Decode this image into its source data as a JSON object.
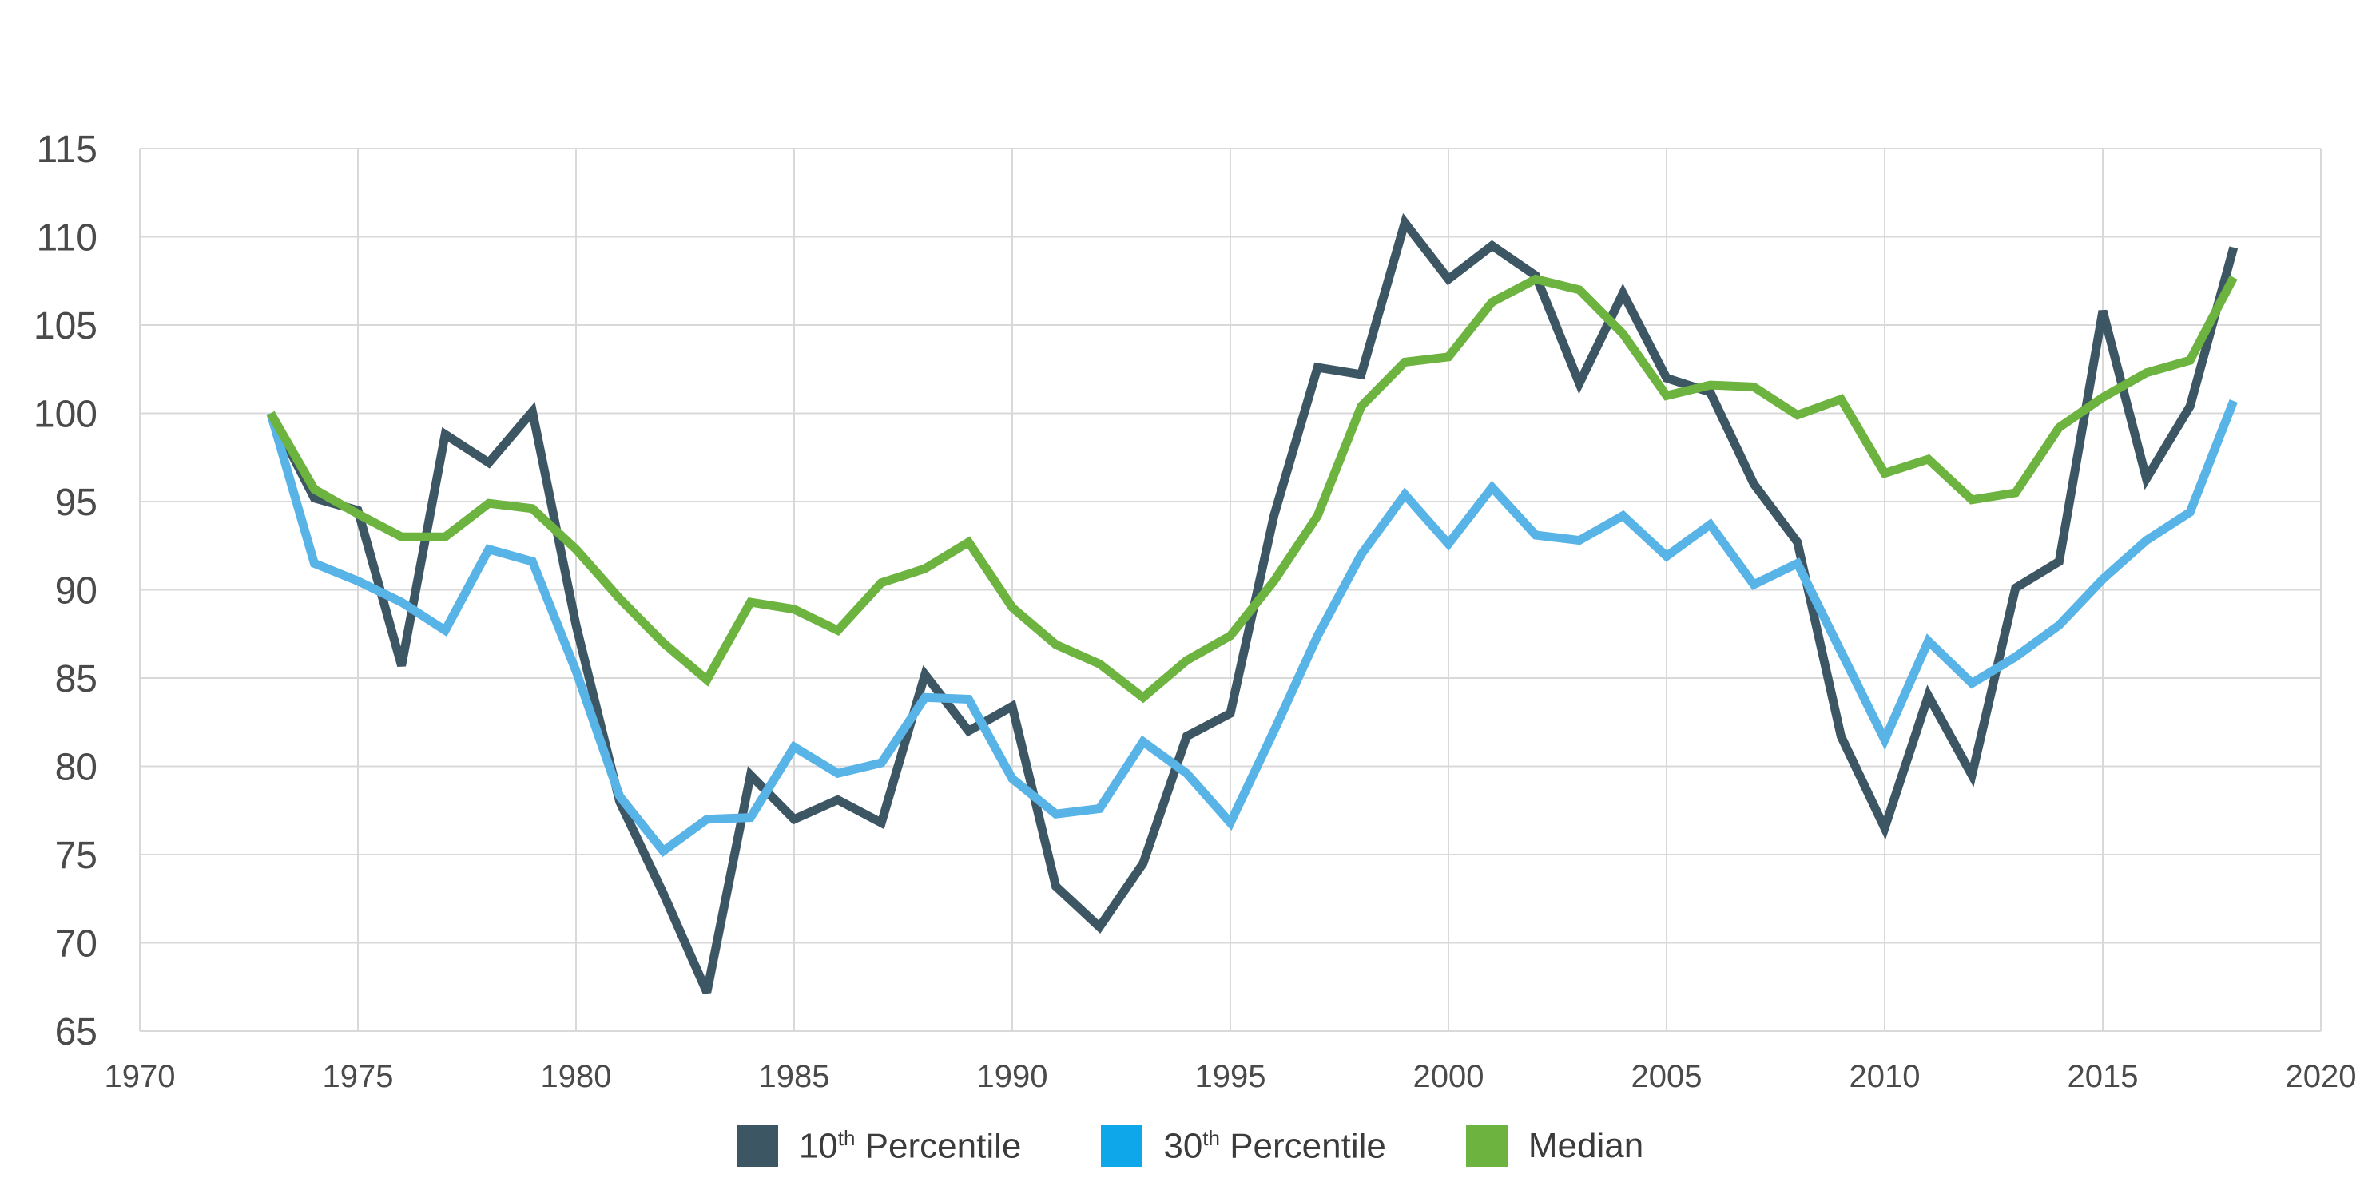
{
  "chart_data": {
    "type": "line",
    "title": "",
    "xlabel": "",
    "ylabel": "",
    "xlim": [
      1970,
      2020
    ],
    "ylim": [
      65,
      115
    ],
    "x_ticks": [
      "1970",
      "1975",
      "1980",
      "1985",
      "1990",
      "1995",
      "2000",
      "2005",
      "2010",
      "2015",
      "2020"
    ],
    "y_ticks": [
      "65",
      "70",
      "75",
      "80",
      "85",
      "90",
      "95",
      "100",
      "105",
      "110",
      "115"
    ],
    "grid": true,
    "legend_position": "bottom-center",
    "x": [
      1973,
      1974,
      1975,
      1976,
      1977,
      1978,
      1979,
      1980,
      1981,
      1982,
      1983,
      1984,
      1985,
      1986,
      1987,
      1988,
      1989,
      1990,
      1991,
      1992,
      1993,
      1994,
      1995,
      1996,
      1997,
      1998,
      1999,
      2000,
      2001,
      2002,
      2003,
      2004,
      2005,
      2006,
      2007,
      2008,
      2009,
      2010,
      2011,
      2012,
      2013,
      2014,
      2015,
      2016,
      2017,
      2018
    ],
    "series": [
      {
        "name": "10th Percentile",
        "base": "10",
        "suffix": "th",
        "rest": " Percentile",
        "color": "#3d5664",
        "values": [
          100,
          95.2,
          94.5,
          85.7,
          98.8,
          97.2,
          100.1,
          88,
          78,
          72.8,
          67.2,
          79.5,
          77,
          78.1,
          76.8,
          85.2,
          82,
          83.4,
          73.2,
          70.9,
          74.5,
          81.7,
          83,
          94.2,
          102.6,
          102.2,
          110.8,
          107.6,
          109.5,
          107.8,
          101.7,
          106.8,
          102,
          101.2,
          96,
          92.7,
          81.7,
          76.5,
          84,
          79.5,
          90.1,
          91.6,
          105.8,
          96.3,
          100.4,
          109.4
        ]
      },
      {
        "name": "30th Percentile",
        "base": "30",
        "suffix": "th",
        "rest": " Percentile",
        "color": "#58b3e6",
        "values": [
          100,
          91.5,
          90.5,
          89.3,
          87.7,
          92.3,
          91.6,
          85.4,
          78.3,
          75.2,
          77,
          77.1,
          81.1,
          79.6,
          80.2,
          83.9,
          83.8,
          79.3,
          77.3,
          77.6,
          81.4,
          79.6,
          76.8,
          82,
          87.4,
          92,
          95.4,
          92.6,
          95.8,
          93.1,
          92.8,
          94.2,
          91.9,
          93.7,
          90.3,
          91.5,
          86.5,
          81.5,
          87.1,
          84.7,
          86.2,
          88,
          90.6,
          92.8,
          94.4,
          100.7
        ]
      },
      {
        "name": "Median",
        "base": "Median",
        "suffix": "",
        "rest": "",
        "color": "#6db33f",
        "values": [
          100,
          95.7,
          94.3,
          93,
          93,
          94.9,
          94.6,
          92.3,
          89.5,
          87,
          84.9,
          89.3,
          88.9,
          87.7,
          90.4,
          91.2,
          92.7,
          89,
          86.9,
          85.8,
          83.9,
          86,
          87.4,
          90.5,
          94.2,
          100.4,
          102.9,
          103.2,
          106.3,
          107.6,
          107,
          104.5,
          101,
          101.6,
          101.5,
          99.9,
          100.8,
          96.6,
          97.4,
          95.1,
          95.5,
          99.2,
          100.9,
          102.3,
          103,
          107.7
        ]
      }
    ]
  },
  "colors": {
    "grid": "#d9d9d9",
    "axis_text": "#4a4a4a",
    "background": "#ffffff"
  }
}
